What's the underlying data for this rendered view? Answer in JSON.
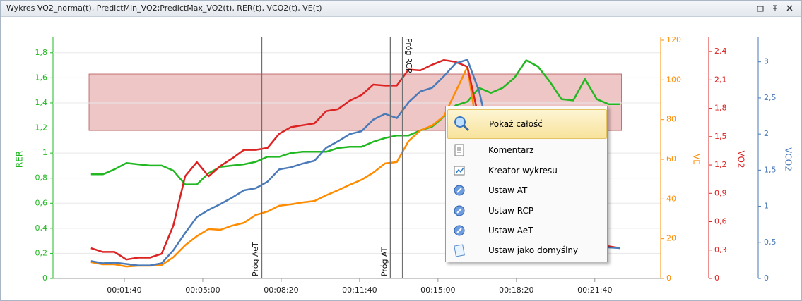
{
  "window": {
    "title": "Wykres VO2_norma(t), PredictMin_VO2;PredictMax_VO2(t), RER(t), VCO2(t), VE(t)"
  },
  "chart_data": {
    "type": "line",
    "grid": true,
    "x": [
      15,
      45,
      75,
      105,
      135,
      165,
      195,
      225,
      255,
      285,
      315,
      345,
      375,
      405,
      435,
      465,
      495,
      525,
      555,
      585,
      615,
      645,
      675,
      705,
      735,
      765,
      795,
      825,
      855,
      885,
      915,
      945,
      975,
      1005,
      1035,
      1065,
      1095,
      1125,
      1155,
      1185,
      1215,
      1245,
      1275,
      1305,
      1335,
      1365
    ],
    "xlim": [
      -82,
      1468
    ],
    "xticks": [
      {
        "value": 100,
        "label": "00:01:40"
      },
      {
        "value": 300,
        "label": "00:05:00"
      },
      {
        "value": 500,
        "label": "00:08:20"
      },
      {
        "value": 700,
        "label": "00:11:40"
      },
      {
        "value": 900,
        "label": "00:15:00"
      },
      {
        "value": 1100,
        "label": "00:18:20"
      },
      {
        "value": 1300,
        "label": "00:21:40"
      }
    ],
    "ylim": [
      0,
      1.9
    ],
    "yticks": [
      0,
      {
        "value": 0.2,
        "label": "0,2"
      },
      {
        "value": 0.4,
        "label": "0,4"
      },
      {
        "value": 0.6,
        "label": "0,6"
      },
      {
        "value": 0.8,
        "label": "0,8"
      },
      1,
      {
        "value": 1.2,
        "label": "1,2"
      },
      {
        "value": 1.4,
        "label": "1,4"
      },
      {
        "value": 1.6,
        "label": "1,6"
      },
      {
        "value": 1.8,
        "label": "1,8"
      }
    ],
    "y2lim": [
      0,
      120
    ],
    "y2ticks": [
      0,
      20,
      40,
      60,
      80,
      100,
      120
    ],
    "y3lim": [
      0,
      2.52
    ],
    "y3ticks": [
      0,
      {
        "value": 0.3,
        "label": "0,3"
      },
      {
        "value": 0.6,
        "label": "0,6"
      },
      {
        "value": 0.9,
        "label": "0,9"
      },
      {
        "value": 1.2,
        "label": "1,2"
      },
      {
        "value": 1.5,
        "label": "1,5"
      },
      {
        "value": 1.8,
        "label": "1,8"
      },
      {
        "value": 2.1,
        "label": "2,1"
      },
      {
        "value": 2.4,
        "label": "2,4"
      }
    ],
    "y4lim": [
      0,
      3.3
    ],
    "y4ticks": [
      0,
      {
        "value": 0.5,
        "label": "0,5"
      },
      1,
      {
        "value": 1.5,
        "label": "1,5"
      },
      2,
      {
        "value": 2.5,
        "label": "2,5"
      },
      3
    ],
    "series": [
      {
        "name": "RER",
        "color": "#22b822",
        "axis": "y",
        "values": [
          0.83,
          0.83,
          0.87,
          0.92,
          0.91,
          0.9,
          0.9,
          0.86,
          0.75,
          0.75,
          0.84,
          0.89,
          0.9,
          0.91,
          0.93,
          0.97,
          0.97,
          1.0,
          1.01,
          1.01,
          1.01,
          1.04,
          1.05,
          1.05,
          1.09,
          1.12,
          1.14,
          1.14,
          1.18,
          1.21,
          1.29,
          1.38,
          1.41,
          1.52,
          1.48,
          1.52,
          1.6,
          1.74,
          1.69,
          1.57,
          1.43,
          1.42,
          1.59,
          1.43,
          1.39,
          1.39
        ]
      },
      {
        "name": "VE",
        "color": "#ff8c00",
        "axis": "y2",
        "values": [
          8.2,
          7.1,
          7.1,
          6,
          6.4,
          6.4,
          6.7,
          10.7,
          16.7,
          21.3,
          24.9,
          24.5,
          26.6,
          28,
          32,
          33.7,
          36.6,
          37.3,
          38.3,
          39,
          41.9,
          44.4,
          47.2,
          49.7,
          53.3,
          57.9,
          58.6,
          69.2,
          74.6,
          77,
          81.7,
          94,
          106.5,
          69,
          40.8,
          23,
          17.8,
          16.7,
          16.7,
          16.7,
          16.7,
          16.7,
          16.7,
          16.7,
          16,
          15.3
        ]
      },
      {
        "name": "VO2",
        "color": "#dd2222",
        "axis": "y3",
        "values": [
          0.32,
          0.28,
          0.28,
          0.2,
          0.22,
          0.22,
          0.26,
          0.56,
          1.08,
          1.23,
          1.08,
          1.19,
          1.27,
          1.36,
          1.36,
          1.38,
          1.53,
          1.6,
          1.62,
          1.64,
          1.77,
          1.79,
          1.88,
          1.94,
          2.05,
          2.04,
          2.04,
          2.21,
          2.2,
          2.26,
          2.31,
          2.29,
          2.24,
          1.68,
          0.71,
          0.37,
          0.37,
          0.36,
          0.36,
          0.35,
          0.35,
          0.34,
          0.34,
          0.34,
          0.34,
          0.32
        ]
      },
      {
        "name": "VCO2",
        "color": "#4a7ab8",
        "axis": "y4",
        "values": [
          0.24,
          0.21,
          0.22,
          0.2,
          0.18,
          0.18,
          0.21,
          0.39,
          0.63,
          0.85,
          0.95,
          1.03,
          1.12,
          1.22,
          1.25,
          1.34,
          1.51,
          1.54,
          1.59,
          1.63,
          1.81,
          1.9,
          2.0,
          2.04,
          2.2,
          2.28,
          2.22,
          2.44,
          2.59,
          2.64,
          2.8,
          2.98,
          3.03,
          2.59,
          1.9,
          0.93,
          0.49,
          0.49,
          0.48,
          0.47,
          0.46,
          0.45,
          0.44,
          0.44,
          0.43,
          0.42
        ]
      }
    ],
    "band": {
      "color": "#d98080",
      "xlim": [
        10,
        1368
      ],
      "ylim": [
        1.18,
        1.63
      ]
    },
    "annotations": [
      {
        "x": 450,
        "label": "Próg AeT",
        "position": "bottom"
      },
      {
        "x": 779,
        "label": "Próg AT",
        "position": "bottom"
      },
      {
        "x": 810,
        "label": "Próg RCP",
        "position": "top"
      }
    ]
  },
  "menu": {
    "items": [
      "Pokaż całość",
      "Komentarz",
      "Kreator wykresu",
      "Ustaw AT",
      "Ustaw RCP",
      "Ustaw AeT",
      "Ustaw jako domyślny"
    ]
  }
}
